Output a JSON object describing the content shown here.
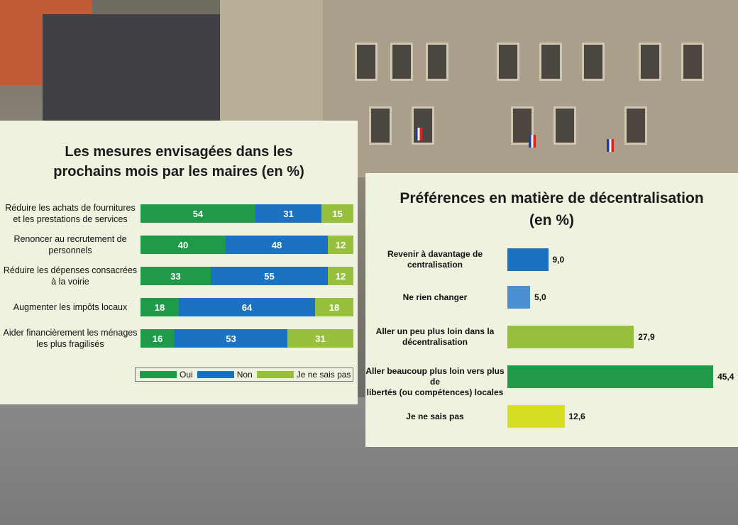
{
  "colors": {
    "oui": "#1e9a48",
    "non": "#1b72c0",
    "nsp": "#97c13c",
    "revenir": "#1b72c0",
    "rien": "#4a8fd1",
    "peu": "#97c13c",
    "beaucoup": "#1e9a48",
    "nsp_right": "#d6df22"
  },
  "chart_data": [
    {
      "type": "bar",
      "stacked": true,
      "orientation": "horizontal",
      "title": "Les mesures envisagées dans les prochains mois par les maires (en %)",
      "title_lines": [
        "Les mesures envisagées dans les",
        "prochains mois par les maires (en %)"
      ],
      "categories": [
        "Réduire les achats de fournitures et les prestations de services",
        "Renoncer au recrutement de personnels",
        "Réduire les dépenses consacrées à la voirie",
        "Augmenter les impôts locaux",
        "Aider financièrement les ménages les plus fragilisés"
      ],
      "category_lines": [
        [
          "Réduire les achats de fournitures",
          "et les prestations de services"
        ],
        [
          "Renoncer au recrutement de",
          "personnels"
        ],
        [
          "Réduire les dépenses consacrées",
          "à la voirie"
        ],
        [
          "Augmenter les impôts locaux"
        ],
        [
          "Aider financièrement les ménages",
          "les plus fragilisés"
        ]
      ],
      "series": [
        {
          "name": "Oui",
          "values": [
            54,
            40,
            33,
            18,
            16
          ]
        },
        {
          "name": "Non",
          "values": [
            31,
            48,
            55,
            64,
            53
          ]
        },
        {
          "name": "Je ne sais pas",
          "values": [
            15,
            12,
            12,
            18,
            31
          ]
        }
      ],
      "legend": "bottom-right"
    },
    {
      "type": "bar",
      "orientation": "horizontal",
      "title": "Préférences en matière de décentralisation (en %)",
      "title_lines": [
        "Préférences en matière de décentralisation",
        "(en %)"
      ],
      "categories": [
        "Revenir à davantage de centralisation",
        "Ne rien changer",
        "Aller un peu plus loin dans la décentralisation",
        "Aller beaucoup plus loin vers plus de libertés (ou compétences) locales",
        "Je ne sais pas"
      ],
      "category_lines": [
        [
          "Revenir à davantage de",
          "centralisation"
        ],
        [
          "Ne rien changer"
        ],
        [
          "Aller un peu plus loin dans la",
          "décentralisation"
        ],
        [
          "Aller beaucoup plus loin vers plus de",
          "libertés (ou compétences) locales"
        ],
        [
          "Je ne sais pas"
        ]
      ],
      "values": [
        9.0,
        5.0,
        27.9,
        45.4,
        12.6
      ],
      "value_labels": [
        "9,0",
        "5,0",
        "27,9",
        "45,4",
        "12,6"
      ],
      "bar_colors": [
        "#1b72c0",
        "#4a8fd1",
        "#97c13c",
        "#1e9a48",
        "#d6df22"
      ]
    }
  ]
}
